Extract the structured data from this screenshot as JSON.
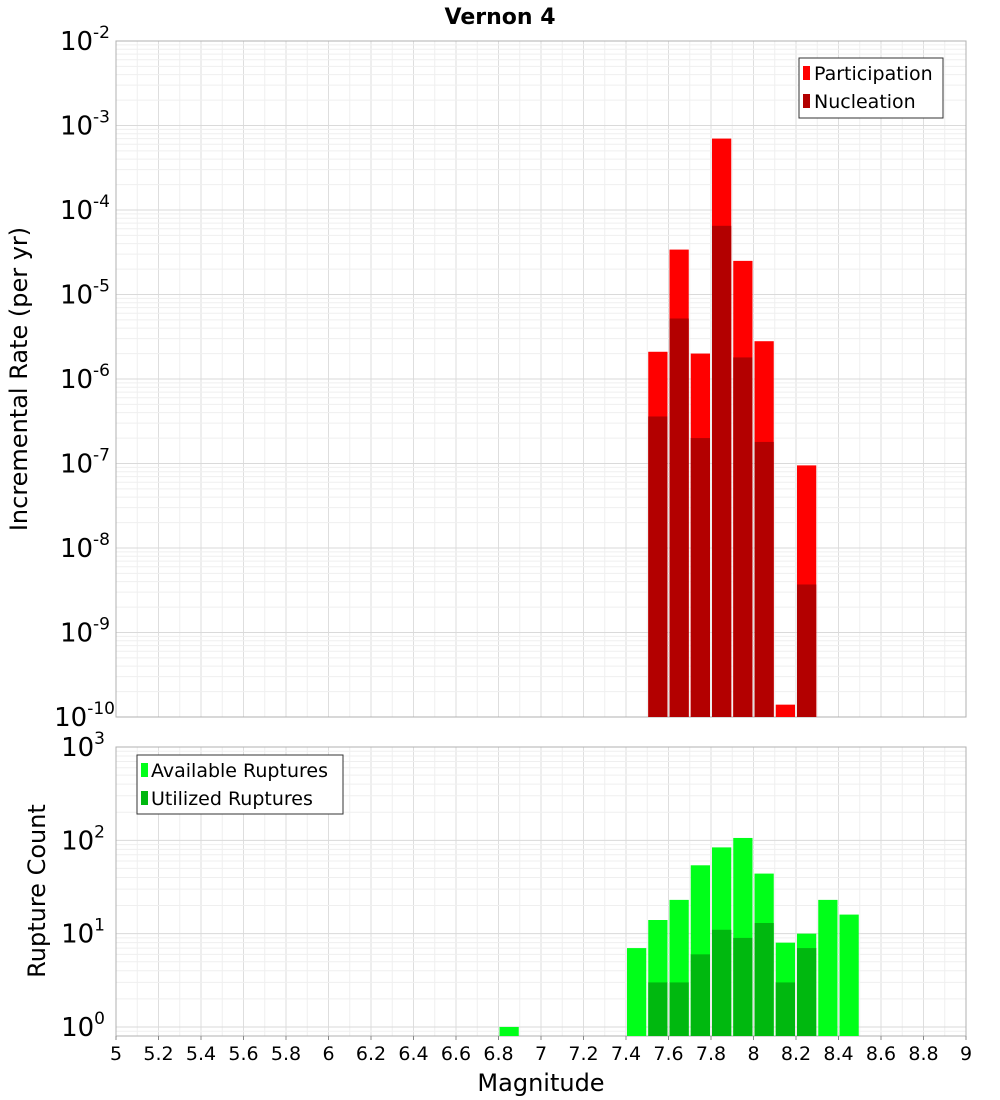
{
  "chart_data": [
    {
      "type": "bar",
      "title": "Vernon 4",
      "ylabel": "Incremental Rate (per yr)",
      "xlabel": "",
      "yscale": "log",
      "ylim": [
        1e-10,
        0.01
      ],
      "xlim": [
        5,
        9
      ],
      "ytick_labels": [
        {
          "base": "10",
          "exp": "-10"
        },
        {
          "base": "10",
          "exp": "-9"
        },
        {
          "base": "10",
          "exp": "-8"
        },
        {
          "base": "10",
          "exp": "-7"
        },
        {
          "base": "10",
          "exp": "-6"
        },
        {
          "base": "10",
          "exp": "-5"
        },
        {
          "base": "10",
          "exp": "-4"
        },
        {
          "base": "10",
          "exp": "-3"
        },
        {
          "base": "10",
          "exp": "-2"
        }
      ],
      "legend_position": "top-right",
      "series": [
        {
          "name": "Participation",
          "color": "#ff0000",
          "x": [
            7.55,
            7.65,
            7.75,
            7.85,
            7.95,
            8.05,
            8.15,
            8.25
          ],
          "values": [
            2.1e-06,
            3.4e-05,
            2e-06,
            0.0007,
            2.5e-05,
            2.8e-06,
            1.4e-10,
            9.5e-08
          ]
        },
        {
          "name": "Nucleation",
          "color": "#b30000",
          "x": [
            7.55,
            7.65,
            7.75,
            7.85,
            7.95,
            8.05,
            8.25
          ],
          "values": [
            3.6e-07,
            5.2e-06,
            2e-07,
            6.5e-05,
            1.8e-06,
            1.8e-07,
            3.7e-09
          ]
        }
      ]
    },
    {
      "type": "bar",
      "title": "",
      "ylabel": "Rupture Count",
      "xlabel": "Magnitude",
      "yscale": "log",
      "ylim": [
        0.8,
        1000
      ],
      "xlim": [
        5,
        9
      ],
      "ytick_labels": [
        {
          "base": "10",
          "exp": "0"
        },
        {
          "base": "10",
          "exp": "1"
        },
        {
          "base": "10",
          "exp": "2"
        },
        {
          "base": "10",
          "exp": "3"
        }
      ],
      "xtick_labels": [
        "5",
        "5.2",
        "5.4",
        "5.6",
        "5.8",
        "6",
        "6.2",
        "6.4",
        "6.6",
        "6.8",
        "7",
        "7.2",
        "7.4",
        "7.6",
        "7.8",
        "8",
        "8.2",
        "8.4",
        "8.6",
        "8.8",
        "9"
      ],
      "legend_position": "top-left",
      "series": [
        {
          "name": "Available Ruptures",
          "color": "#00ff19",
          "x": [
            6.85,
            7.45,
            7.55,
            7.65,
            7.75,
            7.85,
            7.95,
            8.05,
            8.15,
            8.25,
            8.35,
            8.45
          ],
          "values": [
            1,
            7,
            14,
            23,
            54,
            84,
            106,
            44,
            8,
            10,
            23,
            16
          ]
        },
        {
          "name": "Utilized Ruptures",
          "color": "#00b80f",
          "x": [
            7.55,
            7.65,
            7.75,
            7.85,
            7.95,
            8.05,
            8.15,
            8.25
          ],
          "values": [
            3,
            3,
            6,
            11,
            9,
            13,
            3,
            7
          ]
        }
      ]
    }
  ]
}
